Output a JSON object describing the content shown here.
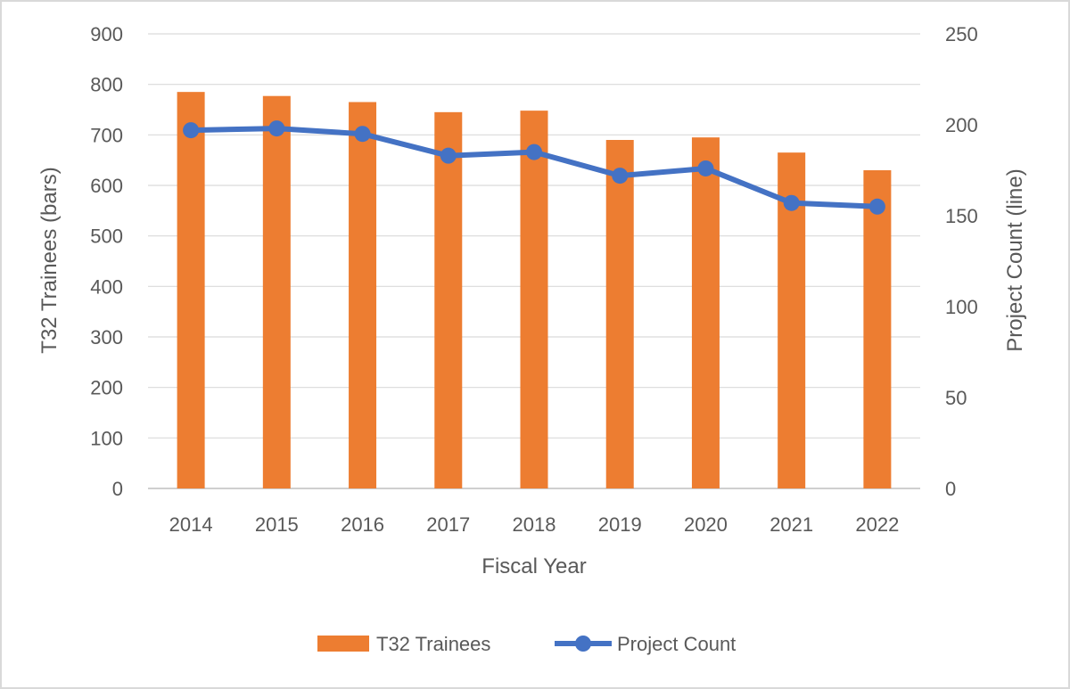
{
  "chart_data": {
    "type": "bar",
    "title": "",
    "categories": [
      "2014",
      "2015",
      "2016",
      "2017",
      "2018",
      "2019",
      "2020",
      "2021",
      "2022"
    ],
    "series": [
      {
        "name": "T32 Trainees",
        "type": "bar",
        "axis": "left",
        "color": "#ed7d31",
        "values": [
          785,
          777,
          765,
          745,
          748,
          690,
          695,
          665,
          630
        ]
      },
      {
        "name": "Project Count",
        "type": "line",
        "axis": "right",
        "color": "#4472c4",
        "values": [
          197,
          198,
          195,
          183,
          185,
          172,
          176,
          157,
          155
        ]
      }
    ],
    "xlabel": "Fiscal Year",
    "ylabel": "T32 Trainees (bars)",
    "y2label": "Project Count (line)",
    "ylim": [
      0,
      900
    ],
    "y2lim": [
      0,
      250
    ],
    "yticks": [
      "0",
      "100",
      "200",
      "300",
      "400",
      "500",
      "600",
      "700",
      "800",
      "900"
    ],
    "y2ticks": [
      "0",
      "50",
      "100",
      "150",
      "200",
      "250"
    ],
    "grid": true,
    "legend": "bottom"
  }
}
